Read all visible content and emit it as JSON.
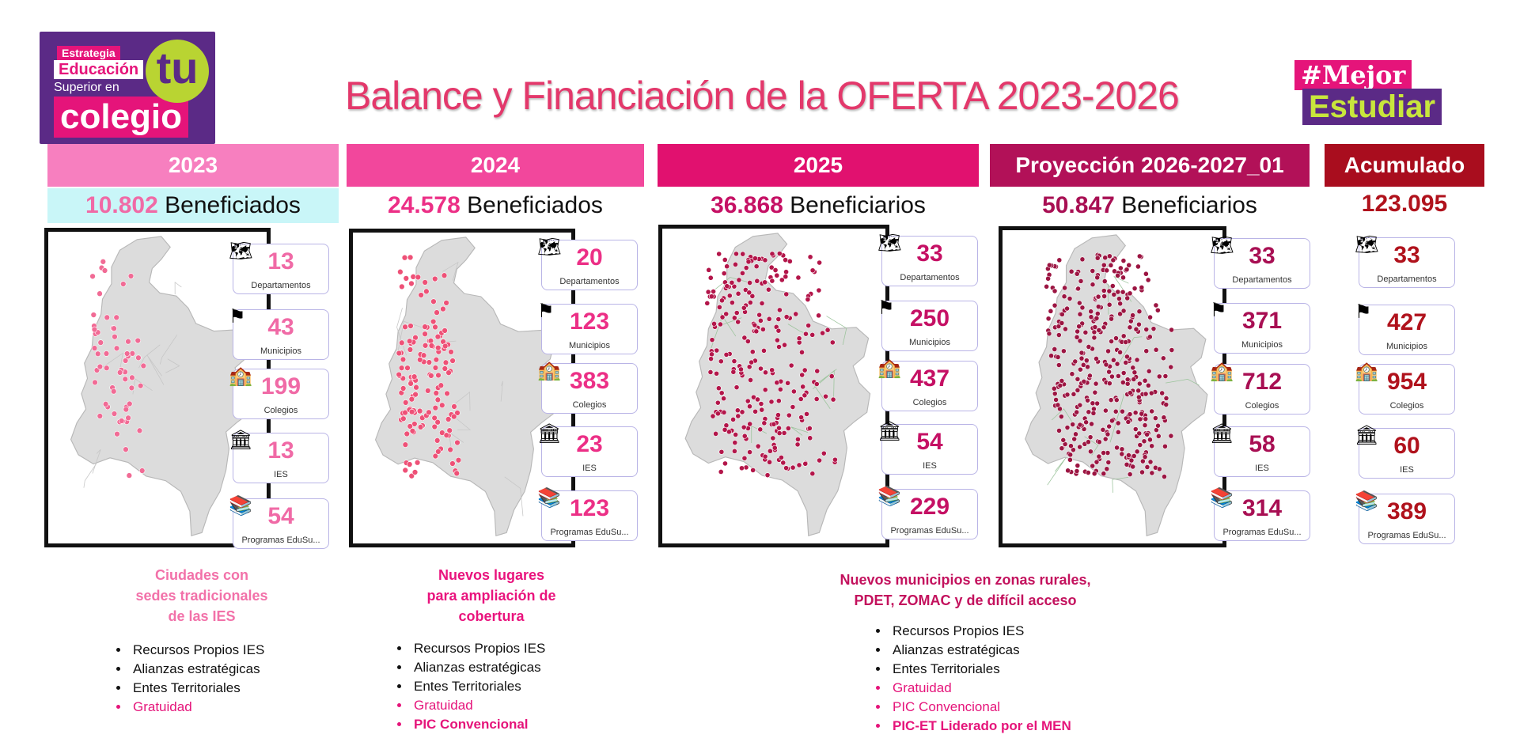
{
  "header": {
    "title": "Balance y Financiación de la OFERTA 2023-2026",
    "logo_left": {
      "line1": "Estrategia",
      "line2": "Educación",
      "line3": "Superior en",
      "line4": "colegio",
      "badge": "tu"
    },
    "logo_right": {
      "line1": "#Mejor",
      "line2": "Estudiar"
    }
  },
  "columns": [
    {
      "key": "2023",
      "label": "2023",
      "color": "#f77fbf",
      "num_color": "#f06aa6",
      "benef_number": "10.802",
      "benef_label": " Beneficiados",
      "benef_bg": "#c9f6f8",
      "stats": [
        {
          "value": "13",
          "label": "Departamentos",
          "icon": "colombia-map-icon"
        },
        {
          "value": "43",
          "label": "Municipios",
          "icon": "municipality-flag-icon"
        },
        {
          "value": "199",
          "label": "Colegios",
          "icon": "school-icon"
        },
        {
          "value": "13",
          "label": "IES",
          "icon": "university-icon"
        },
        {
          "value": "54",
          "label": "Programas EduSu...",
          "icon": "books-icon"
        }
      ],
      "note": [
        "Ciudades con",
        "sedes tradicionales",
        "de las IES"
      ],
      "sources": [
        {
          "text": "Recursos Propios IES",
          "style": "black"
        },
        {
          "text": "Alianzas estratégicas",
          "style": "black"
        },
        {
          "text": "Entes Territoriales",
          "style": "black"
        },
        {
          "text": "Gratuidad",
          "style": "pink"
        }
      ]
    },
    {
      "key": "2024",
      "label": "2024",
      "color": "#f2479c",
      "num_color": "#ec2f86",
      "benef_number": "24.578",
      "benef_label": " Beneficiados",
      "benef_bg": "",
      "stats": [
        {
          "value": "20",
          "label": "Departamentos",
          "icon": "colombia-map-icon"
        },
        {
          "value": "123",
          "label": "Municipios",
          "icon": "municipality-flag-icon"
        },
        {
          "value": "383",
          "label": "Colegios",
          "icon": "school-icon"
        },
        {
          "value": "23",
          "label": "IES",
          "icon": "university-icon"
        },
        {
          "value": "123",
          "label": "Programas EduSu...",
          "icon": "books-icon"
        }
      ],
      "note": [
        "Nuevos lugares",
        "para ampliación de",
        "cobertura"
      ],
      "sources": [
        {
          "text": "Recursos Propios IES",
          "style": "black"
        },
        {
          "text": "Alianzas estratégicas",
          "style": "black"
        },
        {
          "text": "Entes Territoriales",
          "style": "black"
        },
        {
          "text": "Gratuidad",
          "style": "pink"
        },
        {
          "text": "PIC Convencional",
          "style": "pinkb"
        }
      ]
    },
    {
      "key": "2025",
      "label": "2025",
      "color": "#e1116f",
      "num_color": "#c51064",
      "benef_number": "36.868",
      "benef_label": " Beneficiarios",
      "benef_bg": "",
      "stats": [
        {
          "value": "33",
          "label": "Departamentos",
          "icon": "colombia-map-icon"
        },
        {
          "value": "250",
          "label": "Municipios",
          "icon": "municipality-flag-icon"
        },
        {
          "value": "437",
          "label": "Colegios",
          "icon": "school-icon"
        },
        {
          "value": "54",
          "label": "IES",
          "icon": "university-icon"
        },
        {
          "value": "229",
          "label": "Programas EduSu...",
          "icon": "books-icon"
        }
      ],
      "note": [
        "Nuevos municipios en zonas rurales,",
        "PDET, ZOMAC y de difícil acceso"
      ],
      "sources": [
        {
          "text": "Recursos Propios IES",
          "style": "black"
        },
        {
          "text": "Alianzas estratégicas",
          "style": "black"
        },
        {
          "text": "Entes Territoriales",
          "style": "black"
        },
        {
          "text": "Gratuidad",
          "style": "pink"
        },
        {
          "text": "PIC Convencional",
          "style": "pink"
        },
        {
          "text": "PIC-ET Liderado por el MEN",
          "style": "pinkb"
        }
      ]
    },
    {
      "key": "2026",
      "label": "Proyección 2026-2027_01",
      "color": "#b21158",
      "num_color": "#a80f53",
      "benef_number": "50.847",
      "benef_label": " Beneficiarios",
      "benef_bg": "",
      "stats": [
        {
          "value": "33",
          "label": "Departamentos",
          "icon": "colombia-map-icon"
        },
        {
          "value": "371",
          "label": "Municipios",
          "icon": "municipality-flag-icon"
        },
        {
          "value": "712",
          "label": "Colegios",
          "icon": "school-icon"
        },
        {
          "value": "58",
          "label": "IES",
          "icon": "university-icon"
        },
        {
          "value": "314",
          "label": "Programas EduSu...",
          "icon": "books-icon"
        }
      ],
      "note": [],
      "sources": []
    },
    {
      "key": "acum",
      "label": "Acumulado",
      "color": "#a90d1e",
      "num_color": "#b0121c",
      "benef_number": "123.095",
      "benef_label": "",
      "benef_bg": "",
      "stats": [
        {
          "value": "33",
          "label": "Departamentos",
          "icon": "colombia-map-icon"
        },
        {
          "value": "427",
          "label": "Municipios",
          "icon": "municipality-flag-icon"
        },
        {
          "value": "954",
          "label": "Colegios",
          "icon": "school-icon"
        },
        {
          "value": "60",
          "label": "IES",
          "icon": "university-icon"
        },
        {
          "value": "389",
          "label": "Programas EduSu...",
          "icon": "books-icon"
        }
      ],
      "note": [],
      "sources": []
    }
  ],
  "maps": [
    {
      "key": "2023",
      "pin_color": "#f16b95",
      "pin_count": 60
    },
    {
      "key": "2024",
      "pin_color": "#ee5177",
      "pin_count": 140
    },
    {
      "key": "2025",
      "pin_color": "#b3164a",
      "pin_count": 260
    },
    {
      "key": "2026",
      "pin_color": "#9c1542",
      "pin_count": 380
    }
  ]
}
